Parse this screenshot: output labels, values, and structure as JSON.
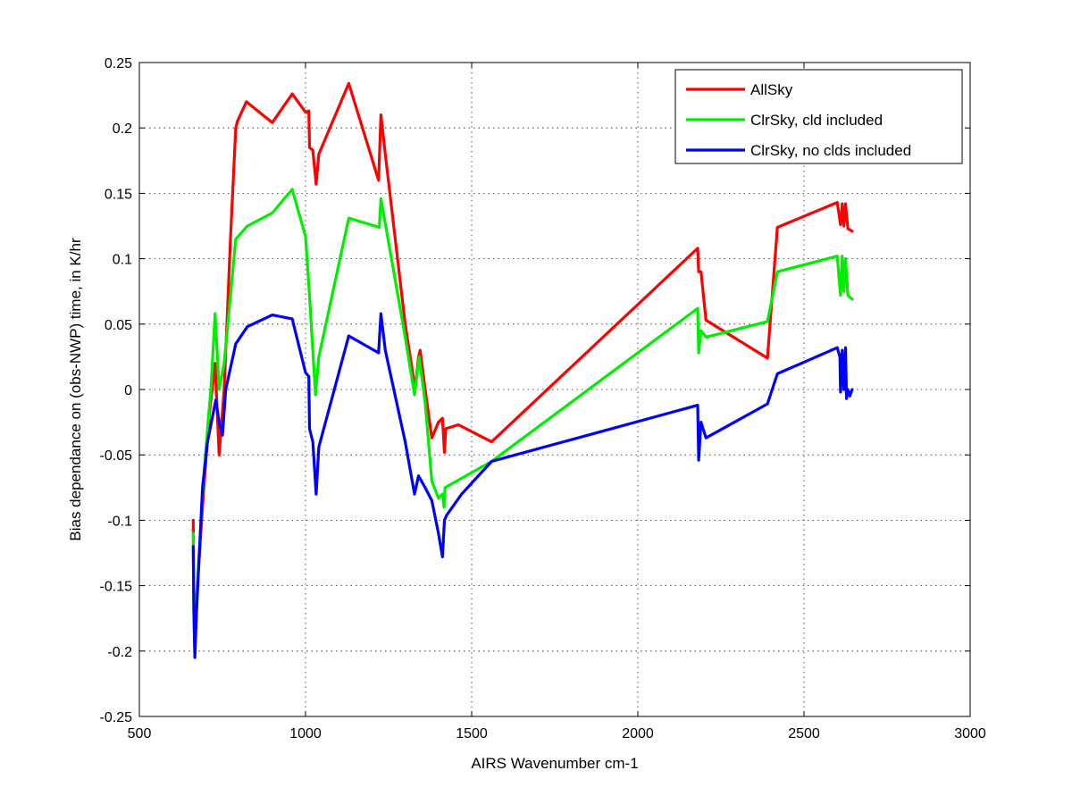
{
  "chart_data": {
    "type": "line",
    "title": "",
    "xlabel": "AIRS Wavenumber cm-1",
    "ylabel": "Bias dependance on (obs-NWP) time, in K/hr",
    "xlim": [
      500,
      3000
    ],
    "ylim": [
      -0.25,
      0.25
    ],
    "xticks": [
      500,
      1000,
      1500,
      2000,
      2500,
      3000
    ],
    "yticks": [
      -0.25,
      -0.2,
      -0.15,
      -0.1,
      -0.05,
      0,
      0.05,
      0.1,
      0.15,
      0.2,
      0.25
    ],
    "xtick_labels": [
      "500",
      "1000",
      "1500",
      "2000",
      "2500",
      "3000"
    ],
    "ytick_labels": [
      "-0.25",
      "-0.2",
      "-0.15",
      "-0.1",
      "-0.05",
      "0",
      "0.05",
      "0.1",
      "0.15",
      "0.2",
      "0.25"
    ],
    "grid": true,
    "legend_position": "top-right",
    "series": [
      {
        "name": "AllSky",
        "color": "#ff0000",
        "points": [
          [
            662,
            -0.1
          ],
          [
            664,
            -0.16
          ],
          [
            667,
            -0.2
          ],
          [
            672,
            -0.16
          ],
          [
            690,
            -0.09
          ],
          [
            710,
            -0.02
          ],
          [
            728,
            0.02
          ],
          [
            740,
            -0.05
          ],
          [
            755,
            0.0
          ],
          [
            775,
            0.12
          ],
          [
            790,
            0.2
          ],
          [
            795,
            0.205
          ],
          [
            822,
            0.22
          ],
          [
            900,
            0.204
          ],
          [
            960,
            0.226
          ],
          [
            1000,
            0.212
          ],
          [
            1010,
            0.213
          ],
          [
            1012,
            0.185
          ],
          [
            1022,
            0.183
          ],
          [
            1032,
            0.157
          ],
          [
            1040,
            0.18
          ],
          [
            1130,
            0.234
          ],
          [
            1220,
            0.16
          ],
          [
            1227,
            0.21
          ],
          [
            1240,
            0.18
          ],
          [
            1300,
            0.05
          ],
          [
            1330,
            0.0
          ],
          [
            1340,
            0.025
          ],
          [
            1345,
            0.03
          ],
          [
            1360,
            0.0
          ],
          [
            1380,
            -0.037
          ],
          [
            1400,
            -0.025
          ],
          [
            1412,
            -0.022
          ],
          [
            1418,
            -0.048
          ],
          [
            1422,
            -0.03
          ],
          [
            1460,
            -0.027
          ],
          [
            1560,
            -0.04
          ],
          [
            2180,
            0.108
          ],
          [
            2183,
            0.09
          ],
          [
            2190,
            0.09
          ],
          [
            2205,
            0.053
          ],
          [
            2390,
            0.024
          ],
          [
            2420,
            0.124
          ],
          [
            2600,
            0.143
          ],
          [
            2610,
            0.126
          ],
          [
            2615,
            0.142
          ],
          [
            2620,
            0.125
          ],
          [
            2625,
            0.142
          ],
          [
            2632,
            0.123
          ],
          [
            2645,
            0.121
          ]
        ]
      },
      {
        "name": "ClrSky, cld included",
        "color": "#00ee00",
        "points": [
          [
            662,
            -0.11
          ],
          [
            664,
            -0.17
          ],
          [
            667,
            -0.2
          ],
          [
            672,
            -0.16
          ],
          [
            690,
            -0.08
          ],
          [
            705,
            -0.03
          ],
          [
            715,
            0.0
          ],
          [
            728,
            0.058
          ],
          [
            740,
            0.0
          ],
          [
            755,
            0.02
          ],
          [
            790,
            0.115
          ],
          [
            825,
            0.125
          ],
          [
            900,
            0.135
          ],
          [
            960,
            0.153
          ],
          [
            1000,
            0.117
          ],
          [
            1010,
            0.08
          ],
          [
            1030,
            -0.004
          ],
          [
            1040,
            0.025
          ],
          [
            1130,
            0.131
          ],
          [
            1222,
            0.124
          ],
          [
            1227,
            0.146
          ],
          [
            1300,
            0.04
          ],
          [
            1328,
            -0.004
          ],
          [
            1342,
            0.025
          ],
          [
            1360,
            -0.01
          ],
          [
            1380,
            -0.07
          ],
          [
            1400,
            -0.083
          ],
          [
            1412,
            -0.08
          ],
          [
            1417,
            -0.09
          ],
          [
            1420,
            -0.075
          ],
          [
            1560,
            -0.055
          ],
          [
            2180,
            0.062
          ],
          [
            2183,
            0.028
          ],
          [
            2190,
            0.045
          ],
          [
            2205,
            0.04
          ],
          [
            2390,
            0.052
          ],
          [
            2420,
            0.09
          ],
          [
            2600,
            0.102
          ],
          [
            2610,
            0.072
          ],
          [
            2615,
            0.102
          ],
          [
            2620,
            0.075
          ],
          [
            2625,
            0.1
          ],
          [
            2632,
            0.072
          ],
          [
            2645,
            0.069
          ]
        ]
      },
      {
        "name": "ClrSky, no clds included",
        "color": "#0000ff",
        "points": [
          [
            662,
            -0.12
          ],
          [
            664,
            -0.17
          ],
          [
            667,
            -0.205
          ],
          [
            672,
            -0.17
          ],
          [
            690,
            -0.075
          ],
          [
            705,
            -0.04
          ],
          [
            730,
            -0.008
          ],
          [
            740,
            -0.025
          ],
          [
            750,
            -0.035
          ],
          [
            760,
            0.0
          ],
          [
            790,
            0.035
          ],
          [
            825,
            0.048
          ],
          [
            900,
            0.057
          ],
          [
            960,
            0.054
          ],
          [
            1000,
            0.013
          ],
          [
            1010,
            0.01
          ],
          [
            1012,
            -0.03
          ],
          [
            1022,
            -0.04
          ],
          [
            1032,
            -0.08
          ],
          [
            1040,
            -0.044
          ],
          [
            1130,
            0.041
          ],
          [
            1220,
            0.028
          ],
          [
            1227,
            0.058
          ],
          [
            1240,
            0.03
          ],
          [
            1300,
            -0.04
          ],
          [
            1328,
            -0.08
          ],
          [
            1340,
            -0.066
          ],
          [
            1360,
            -0.075
          ],
          [
            1380,
            -0.085
          ],
          [
            1400,
            -0.11
          ],
          [
            1412,
            -0.128
          ],
          [
            1418,
            -0.1
          ],
          [
            1425,
            -0.096
          ],
          [
            1470,
            -0.08
          ],
          [
            1560,
            -0.055
          ],
          [
            2180,
            -0.012
          ],
          [
            2183,
            -0.054
          ],
          [
            2190,
            -0.025
          ],
          [
            2205,
            -0.037
          ],
          [
            2390,
            -0.011
          ],
          [
            2420,
            0.012
          ],
          [
            2600,
            0.032
          ],
          [
            2608,
            0.025
          ],
          [
            2610,
            -0.002
          ],
          [
            2615,
            0.03
          ],
          [
            2620,
            0.0
          ],
          [
            2625,
            0.032
          ],
          [
            2628,
            -0.007
          ],
          [
            2632,
            0.0
          ],
          [
            2638,
            -0.005
          ],
          [
            2645,
            0.0
          ]
        ]
      }
    ]
  }
}
